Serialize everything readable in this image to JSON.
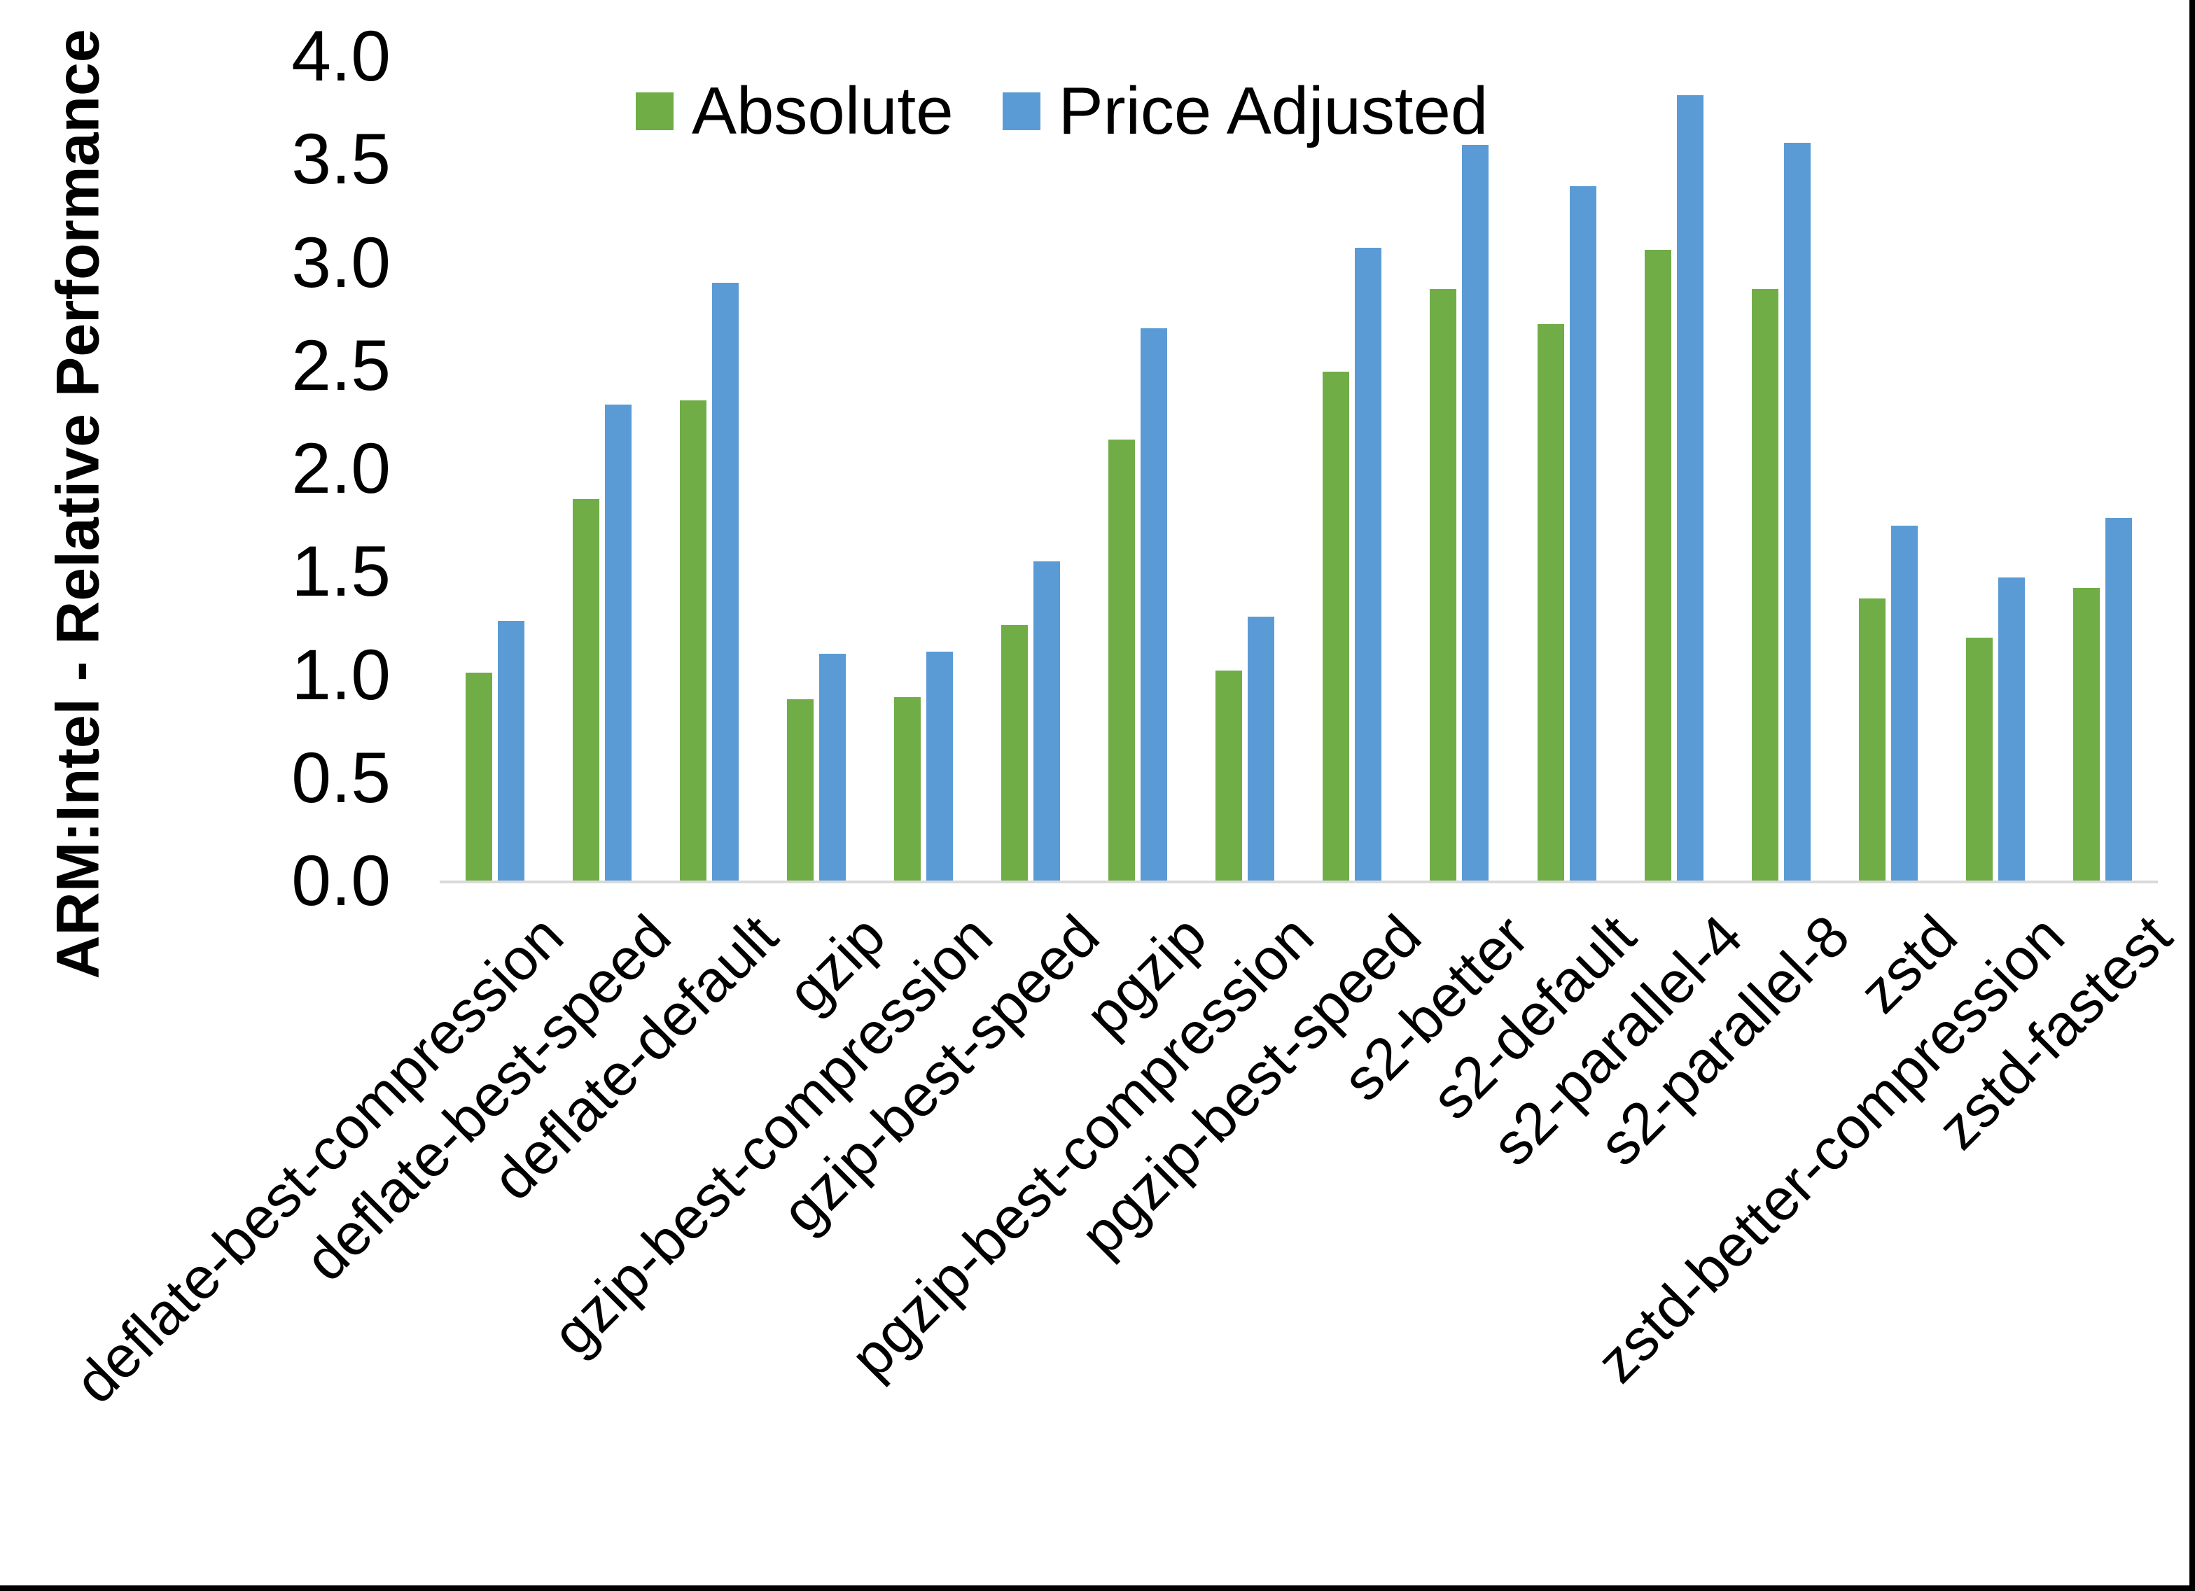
{
  "page": {
    "background": "#ffffff",
    "frame_border_color": "#000000"
  },
  "y_axis": {
    "title": "ARM:Intel - Relative Performance",
    "tick_labels": [
      "0.0",
      "0.5",
      "1.0",
      "1.5",
      "2.0",
      "2.5",
      "3.0",
      "3.5",
      "4.0"
    ],
    "min": 0.0,
    "max": 4.0
  },
  "legend": {
    "items": [
      {
        "label": "Absolute",
        "color": "#70AD47",
        "swatch_icon": "green-square-swatch-icon"
      },
      {
        "label": "Price Adjusted",
        "color": "#5B9BD5",
        "swatch_icon": "blue-square-swatch-icon"
      }
    ]
  },
  "chart_data": {
    "type": "bar",
    "title": "",
    "xlabel": "",
    "ylabel": "ARM:Intel - Relative Performance",
    "ylim": [
      0.0,
      4.0
    ],
    "ytick_step": 0.5,
    "grid": false,
    "legend_position": "top-center",
    "axis_line_color": "#D9D9D9",
    "categories": [
      "deflate-best-compression",
      "deflate-best-speed",
      "deflate-default",
      "gzip",
      "gzip-best-compression",
      "gzip-best-speed",
      "pgzip",
      "pgzip-best-compression",
      "pgzip-best-speed",
      "s2-better",
      "s2-default",
      "s2-parallel-4",
      "s2-parallel-8",
      "zstd",
      "zstd-better-compression",
      "zstd-fastest"
    ],
    "series": [
      {
        "name": "Absolute",
        "color": "#70AD47",
        "values": [
          1.01,
          1.85,
          2.33,
          0.88,
          0.89,
          1.24,
          2.14,
          1.02,
          2.47,
          2.87,
          2.7,
          3.06,
          2.87,
          1.37,
          1.18,
          1.42
        ]
      },
      {
        "name": "Price Adjusted",
        "color": "#5B9BD5",
        "values": [
          1.26,
          2.31,
          2.9,
          1.1,
          1.11,
          1.55,
          2.68,
          1.28,
          3.07,
          3.57,
          3.37,
          3.81,
          3.58,
          1.72,
          1.47,
          1.76
        ]
      }
    ]
  }
}
